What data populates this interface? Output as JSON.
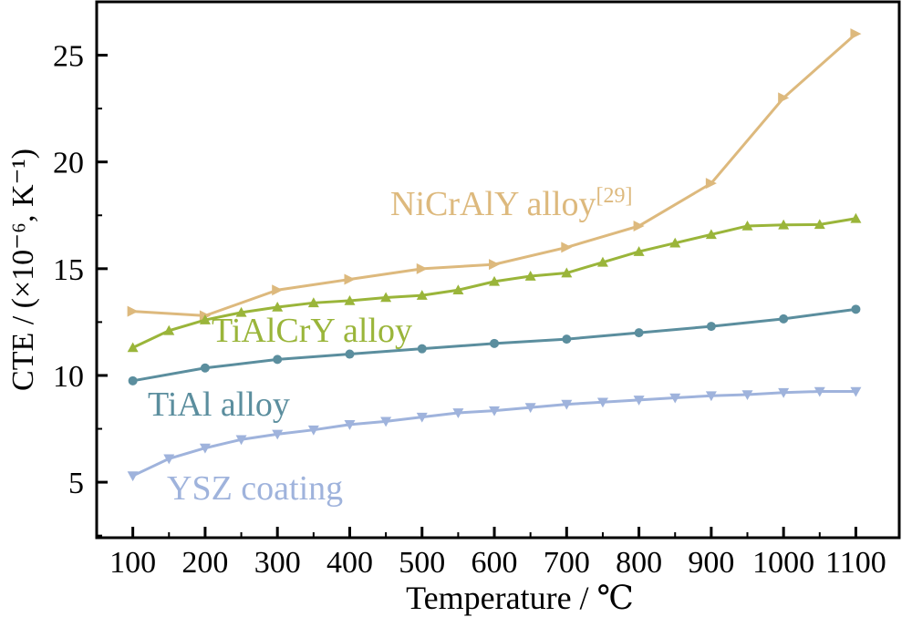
{
  "chart_data": {
    "type": "line",
    "title": "",
    "xlabel": "Temperature / ℃",
    "ylabel": "CTE / (×10⁻⁶, K⁻¹)",
    "xlim": [
      50,
      1160
    ],
    "ylim": [
      2.4,
      27.5
    ],
    "xticks": [
      100,
      200,
      300,
      400,
      500,
      600,
      700,
      800,
      900,
      1000,
      1100
    ],
    "yticks": [
      5,
      10,
      15,
      20,
      25
    ],
    "grid": false,
    "legend": "none (inline labels)",
    "series": [
      {
        "name": "NiCrAlY alloy",
        "name_sup": "[29]",
        "color": "#DDB97D",
        "marker": "triangle-right",
        "x": [
          100,
          200,
          300,
          400,
          500,
          600,
          700,
          800,
          900,
          1000,
          1100
        ],
        "y": [
          13.0,
          12.8,
          14.0,
          14.5,
          15.0,
          15.2,
          16.0,
          17.0,
          19.0,
          23.0,
          26.0
        ]
      },
      {
        "name": "TiAlCrY alloy",
        "color": "#9AB53A",
        "marker": "triangle-up",
        "x": [
          100,
          150,
          200,
          250,
          300,
          350,
          400,
          450,
          500,
          550,
          600,
          650,
          700,
          750,
          800,
          850,
          900,
          950,
          1000,
          1050,
          1100
        ],
        "y": [
          11.3,
          12.1,
          12.6,
          12.95,
          13.2,
          13.4,
          13.5,
          13.65,
          13.75,
          14.0,
          14.4,
          14.65,
          14.8,
          15.3,
          15.8,
          16.2,
          16.6,
          17.0,
          17.05,
          17.07,
          17.35
        ]
      },
      {
        "name": "TiAl alloy",
        "color": "#5B8E9E",
        "marker": "circle",
        "x": [
          100,
          200,
          300,
          400,
          500,
          600,
          700,
          800,
          900,
          1000,
          1100
        ],
        "y": [
          9.75,
          10.35,
          10.75,
          11.0,
          11.25,
          11.5,
          11.7,
          12.0,
          12.3,
          12.65,
          13.1
        ]
      },
      {
        "name": "YSZ coating",
        "color": "#9FB3DC",
        "marker": "triangle-down",
        "x": [
          100,
          150,
          200,
          250,
          300,
          350,
          400,
          450,
          500,
          550,
          600,
          650,
          700,
          750,
          800,
          850,
          900,
          950,
          1000,
          1050,
          1100
        ],
        "y": [
          5.3,
          6.1,
          6.6,
          7.0,
          7.25,
          7.45,
          7.7,
          7.85,
          8.05,
          8.25,
          8.35,
          8.5,
          8.65,
          8.75,
          8.85,
          8.95,
          9.05,
          9.1,
          9.2,
          9.25,
          9.25
        ]
      }
    ]
  }
}
